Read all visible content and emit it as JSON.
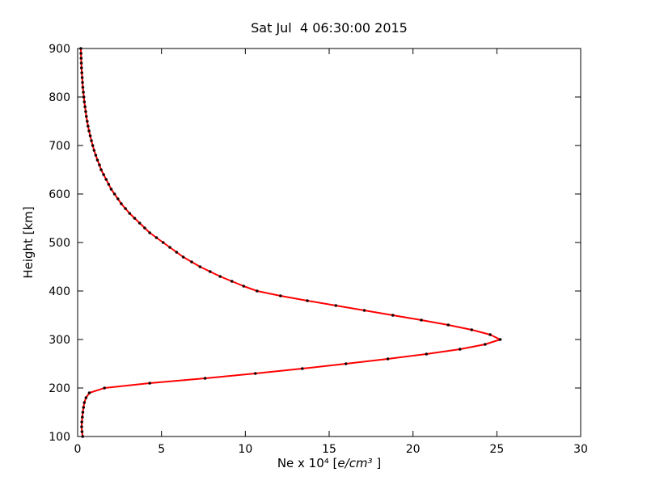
{
  "chart_data": {
    "type": "line",
    "title": "Sat Jul  4 06:30:00 2015",
    "xlabel": "Ne x 10⁴  [e/cm³ ]",
    "xlabel_parts": {
      "prefix": "Ne x 10⁴  [",
      "math": "e/cm³",
      "end": " ]"
    },
    "ylabel": "Height [km]",
    "xlim": [
      0,
      30
    ],
    "ylim": [
      100,
      900
    ],
    "xticks": [
      0,
      5,
      10,
      15,
      20,
      25,
      30
    ],
    "yticks": [
      100,
      200,
      300,
      400,
      500,
      600,
      700,
      800,
      900
    ],
    "grid": false,
    "legend": "none",
    "line_color": "#ff0000",
    "marker_color": "#1e0000",
    "series": [
      {
        "name": "electron-density-profile",
        "heights_km": [
          100,
          110,
          120,
          130,
          140,
          150,
          160,
          170,
          180,
          190,
          200,
          210,
          220,
          230,
          240,
          250,
          260,
          270,
          280,
          290,
          300,
          310,
          320,
          330,
          340,
          350,
          360,
          370,
          380,
          390,
          400,
          410,
          420,
          430,
          440,
          450,
          460,
          470,
          480,
          490,
          500,
          510,
          520,
          530,
          540,
          550,
          560,
          570,
          580,
          590,
          600,
          610,
          620,
          630,
          640,
          650,
          660,
          670,
          680,
          690,
          700,
          710,
          720,
          730,
          740,
          750,
          760,
          770,
          780,
          790,
          800,
          810,
          820,
          830,
          840,
          850,
          860,
          870,
          880,
          890,
          900
        ],
        "ne_1e4_e_per_cm3": [
          0.3,
          0.26,
          0.24,
          0.25,
          0.28,
          0.31,
          0.35,
          0.4,
          0.5,
          0.7,
          1.6,
          4.3,
          7.6,
          10.6,
          13.4,
          16.0,
          18.5,
          20.8,
          22.8,
          24.3,
          25.2,
          24.6,
          23.5,
          22.1,
          20.5,
          18.8,
          17.1,
          15.4,
          13.7,
          12.1,
          10.7,
          9.9,
          9.2,
          8.5,
          7.9,
          7.3,
          6.8,
          6.3,
          5.9,
          5.5,
          5.1,
          4.7,
          4.3,
          4.0,
          3.7,
          3.4,
          3.1,
          2.85,
          2.6,
          2.4,
          2.2,
          2.0,
          1.85,
          1.7,
          1.55,
          1.4,
          1.3,
          1.18,
          1.08,
          0.98,
          0.9,
          0.82,
          0.75,
          0.68,
          0.62,
          0.57,
          0.52,
          0.48,
          0.44,
          0.4,
          0.37,
          0.34,
          0.31,
          0.29,
          0.27,
          0.25,
          0.23,
          0.22,
          0.21,
          0.2,
          0.19
        ]
      }
    ]
  }
}
